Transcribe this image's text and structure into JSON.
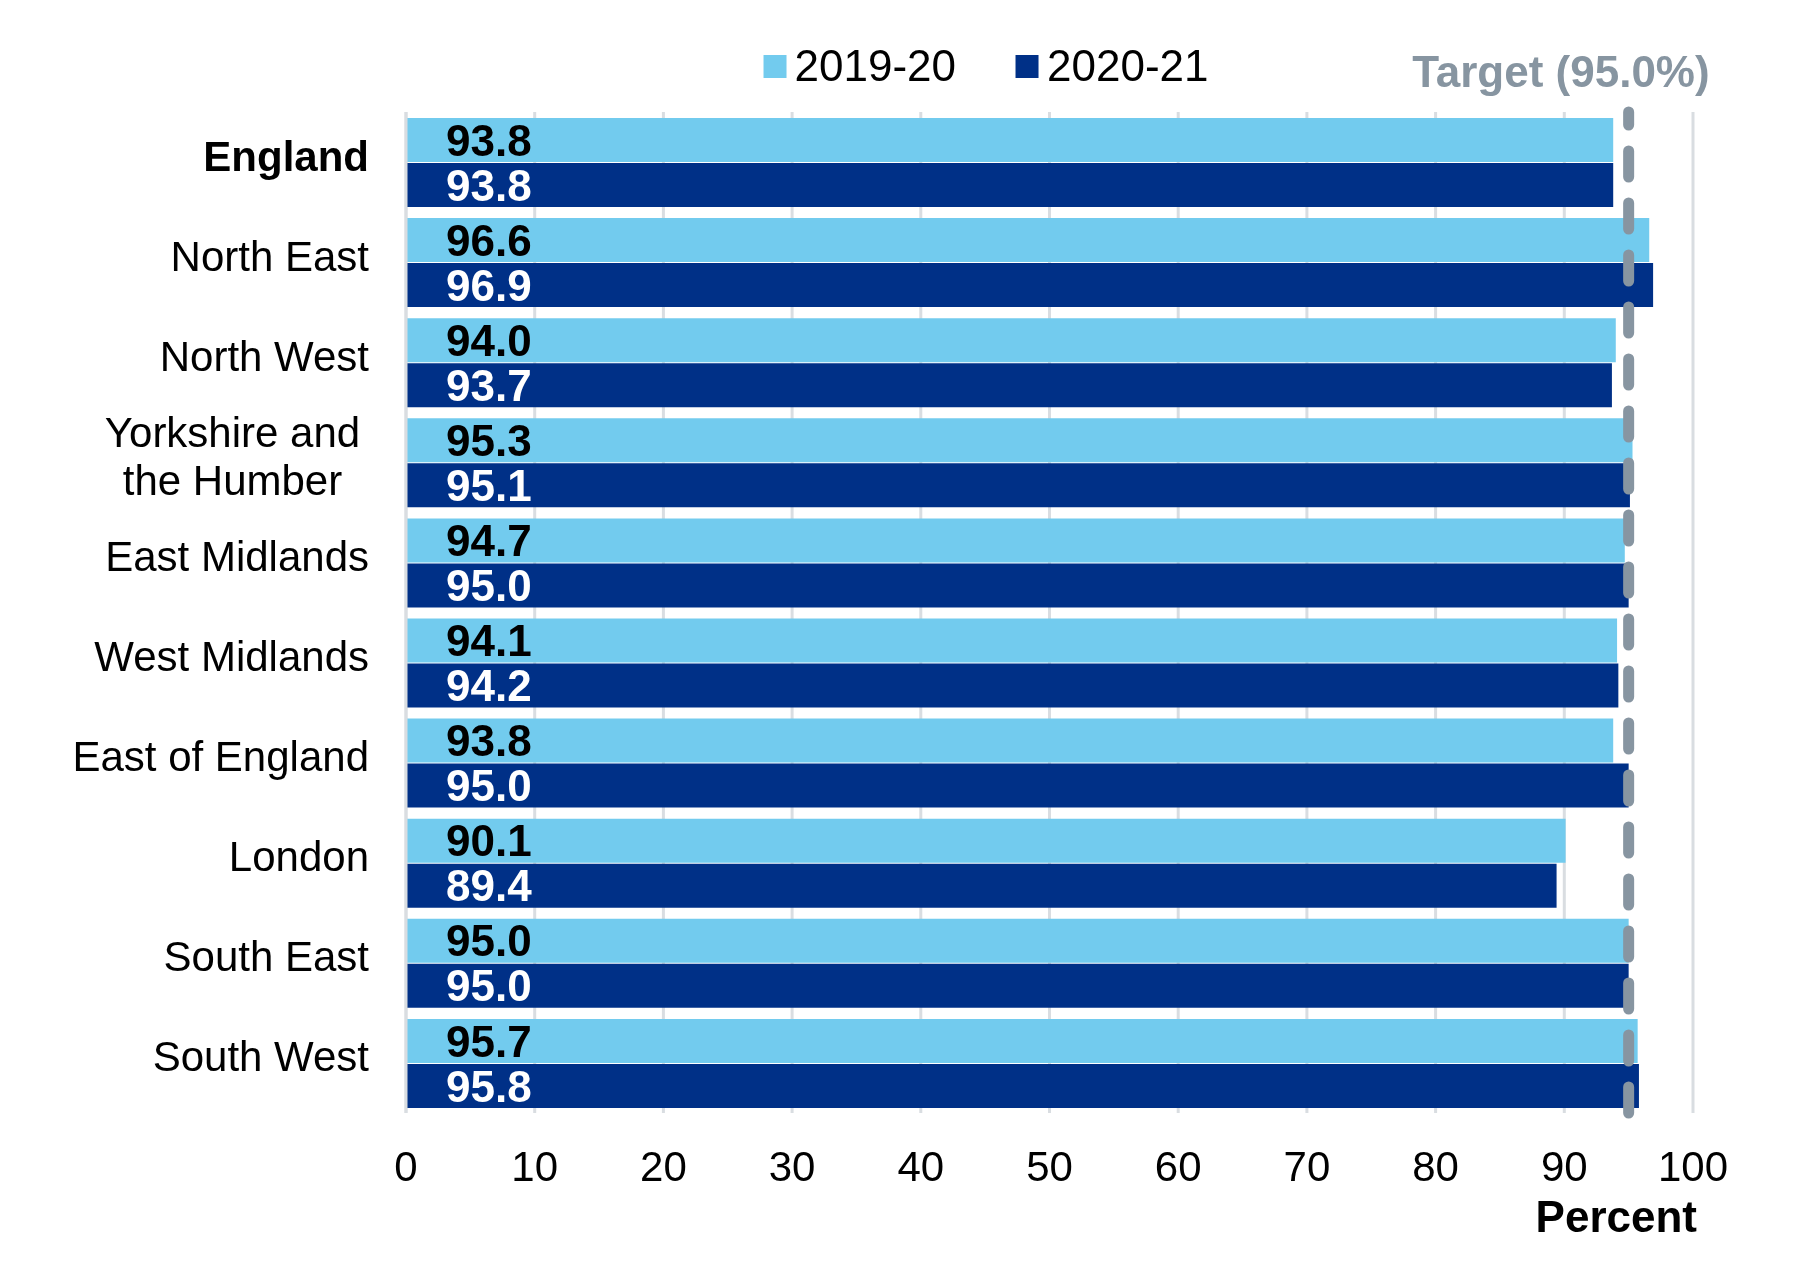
{
  "chart_data": {
    "type": "bar",
    "orientation": "horizontal",
    "categories": [
      "England",
      "North East",
      "North West",
      "Yorkshire and the Humber",
      "East Midlands",
      "West Midlands",
      "East of England",
      "London",
      "South East",
      "South West"
    ],
    "series": [
      {
        "name": "2019-20",
        "color": "#72cbee",
        "values": [
          93.8,
          96.6,
          94.0,
          95.3,
          94.7,
          94.1,
          93.8,
          90.1,
          95.0,
          95.7
        ],
        "value_labels": [
          "93.8",
          "96.6",
          "94.0",
          "95.3",
          "94.7",
          "94.1",
          "93.8",
          "90.1",
          "95.0",
          "95.7"
        ]
      },
      {
        "name": "2020-21",
        "color": "#003087",
        "values": [
          93.8,
          96.9,
          93.7,
          95.1,
          95.0,
          94.2,
          95.0,
          89.4,
          95.0,
          95.8
        ],
        "value_labels": [
          "93.8",
          "96.9",
          "93.7",
          "95.1",
          "95.0",
          "94.2",
          "95.0",
          "89.4",
          "95.0",
          "95.8"
        ]
      }
    ],
    "xlabel": "Percent",
    "xlim": [
      0,
      100
    ],
    "xticks": [
      0,
      10,
      20,
      30,
      40,
      50,
      60,
      70,
      80,
      90,
      100
    ],
    "grid": "x",
    "legend": "top",
    "ref_lines": [
      {
        "axis": "x",
        "value": 95.0,
        "label": "Target (95.0%)",
        "color": "#8795a1",
        "line_style": "dashed"
      }
    ]
  }
}
